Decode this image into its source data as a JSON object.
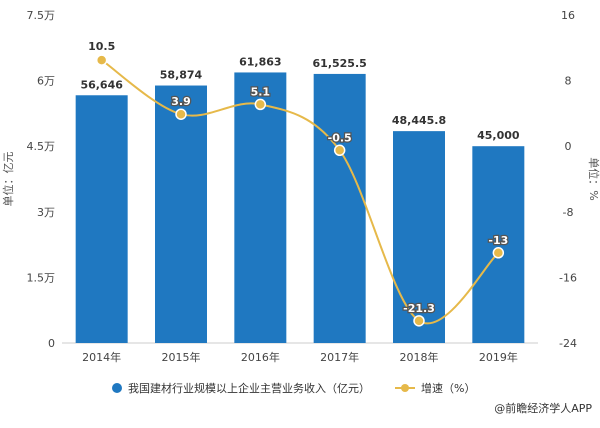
{
  "chart_data": {
    "type": "bar",
    "categories": [
      "2014年",
      "2015年",
      "2016年",
      "2017年",
      "2018年",
      "2019年"
    ],
    "series": [
      {
        "name": "我国建材行业规模以上企业主营业务收入（亿元）",
        "type": "bar",
        "axis": "left",
        "color": "#1f78c1",
        "values": [
          56646,
          58874,
          61863,
          61525.5,
          48445.8,
          45000
        ],
        "labels": [
          "56,646",
          "58,874",
          "61,863",
          "61,525.5",
          "48,445.8",
          "45,000"
        ]
      },
      {
        "name": "增速（%）",
        "type": "line",
        "axis": "right",
        "color": "#e6b94a",
        "values": [
          10.5,
          3.9,
          5.1,
          -0.5,
          -21.3,
          -13
        ],
        "labels": [
          "10.5",
          "3.9",
          "5.1",
          "-0.5",
          "-21.3",
          "-13"
        ]
      }
    ],
    "ylabel": "单位：亿元",
    "ylabel_right": "单位：%",
    "ylim": [
      0,
      75000
    ],
    "yticks": [
      "0",
      "1.5万",
      "3万",
      "4.5万",
      "6万",
      "7.5万"
    ],
    "ylim_right": [
      -24,
      16
    ],
    "yticks_right": [
      "-24",
      "-16",
      "-8",
      "0",
      "8",
      "16"
    ],
    "grid": false,
    "legend_position": "bottom"
  },
  "source": "@前瞻经济学人APP"
}
